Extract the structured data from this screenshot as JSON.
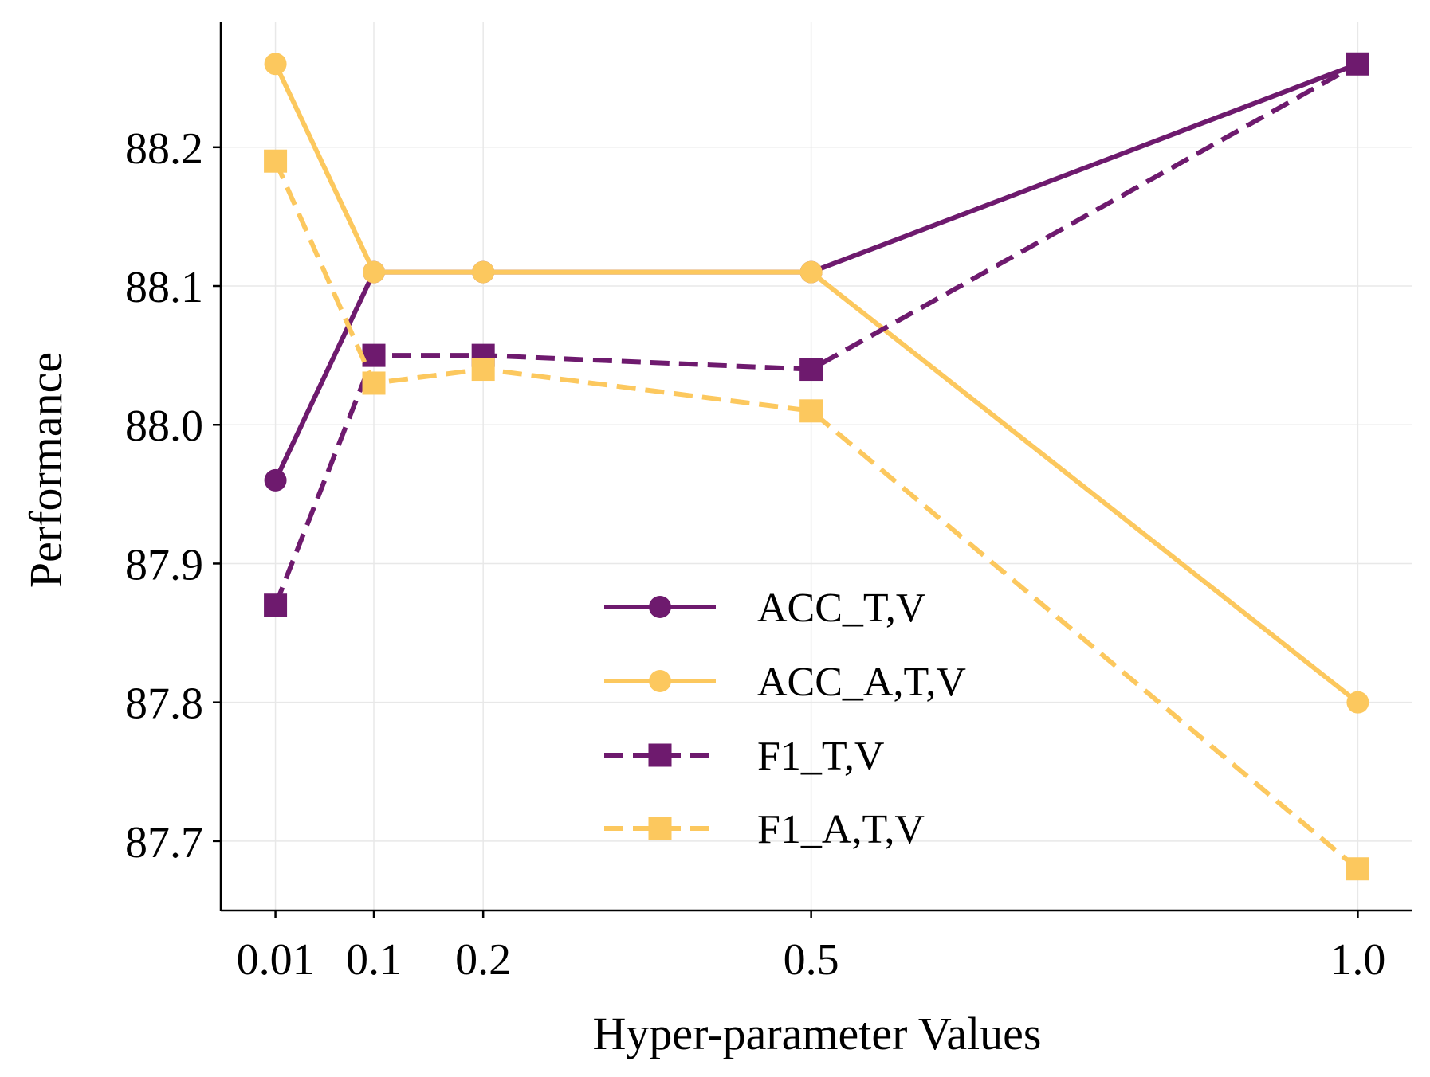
{
  "chart_data": {
    "type": "line",
    "title": "",
    "xlabel": "Hyper-parameter Values",
    "ylabel": "Performance",
    "x": [
      0.01,
      0.1,
      0.2,
      0.5,
      1.0
    ],
    "x_tick_labels": [
      "0.01",
      "0.1",
      "0.2",
      "0.5",
      "1.0"
    ],
    "y_ticks": [
      87.7,
      87.8,
      87.9,
      88.0,
      88.1,
      88.2
    ],
    "y_tick_labels": [
      "87.7",
      "87.8",
      "87.9",
      "88.0",
      "88.1",
      "88.2"
    ],
    "xlim": [
      -0.04,
      1.05
    ],
    "ylim": [
      87.65,
      88.29
    ],
    "grid": true,
    "legend_position": "lower-center",
    "series": [
      {
        "name": "ACC_T,V",
        "values": [
          87.96,
          88.11,
          88.11,
          88.11,
          88.26
        ],
        "color": "#6E1A6E",
        "style": "solid",
        "marker": "circle"
      },
      {
        "name": "ACC_A,T,V",
        "values": [
          88.26,
          88.11,
          88.11,
          88.11,
          87.8
        ],
        "color": "#FCC85E",
        "style": "solid",
        "marker": "circle"
      },
      {
        "name": "F1_T,V",
        "values": [
          87.87,
          88.05,
          88.05,
          88.04,
          88.26
        ],
        "color": "#6E1A6E",
        "style": "dashed",
        "marker": "square"
      },
      {
        "name": "F1_A,T,V",
        "values": [
          88.19,
          88.03,
          88.04,
          88.01,
          87.68
        ],
        "color": "#FCC85E",
        "style": "dashed",
        "marker": "square"
      }
    ]
  }
}
